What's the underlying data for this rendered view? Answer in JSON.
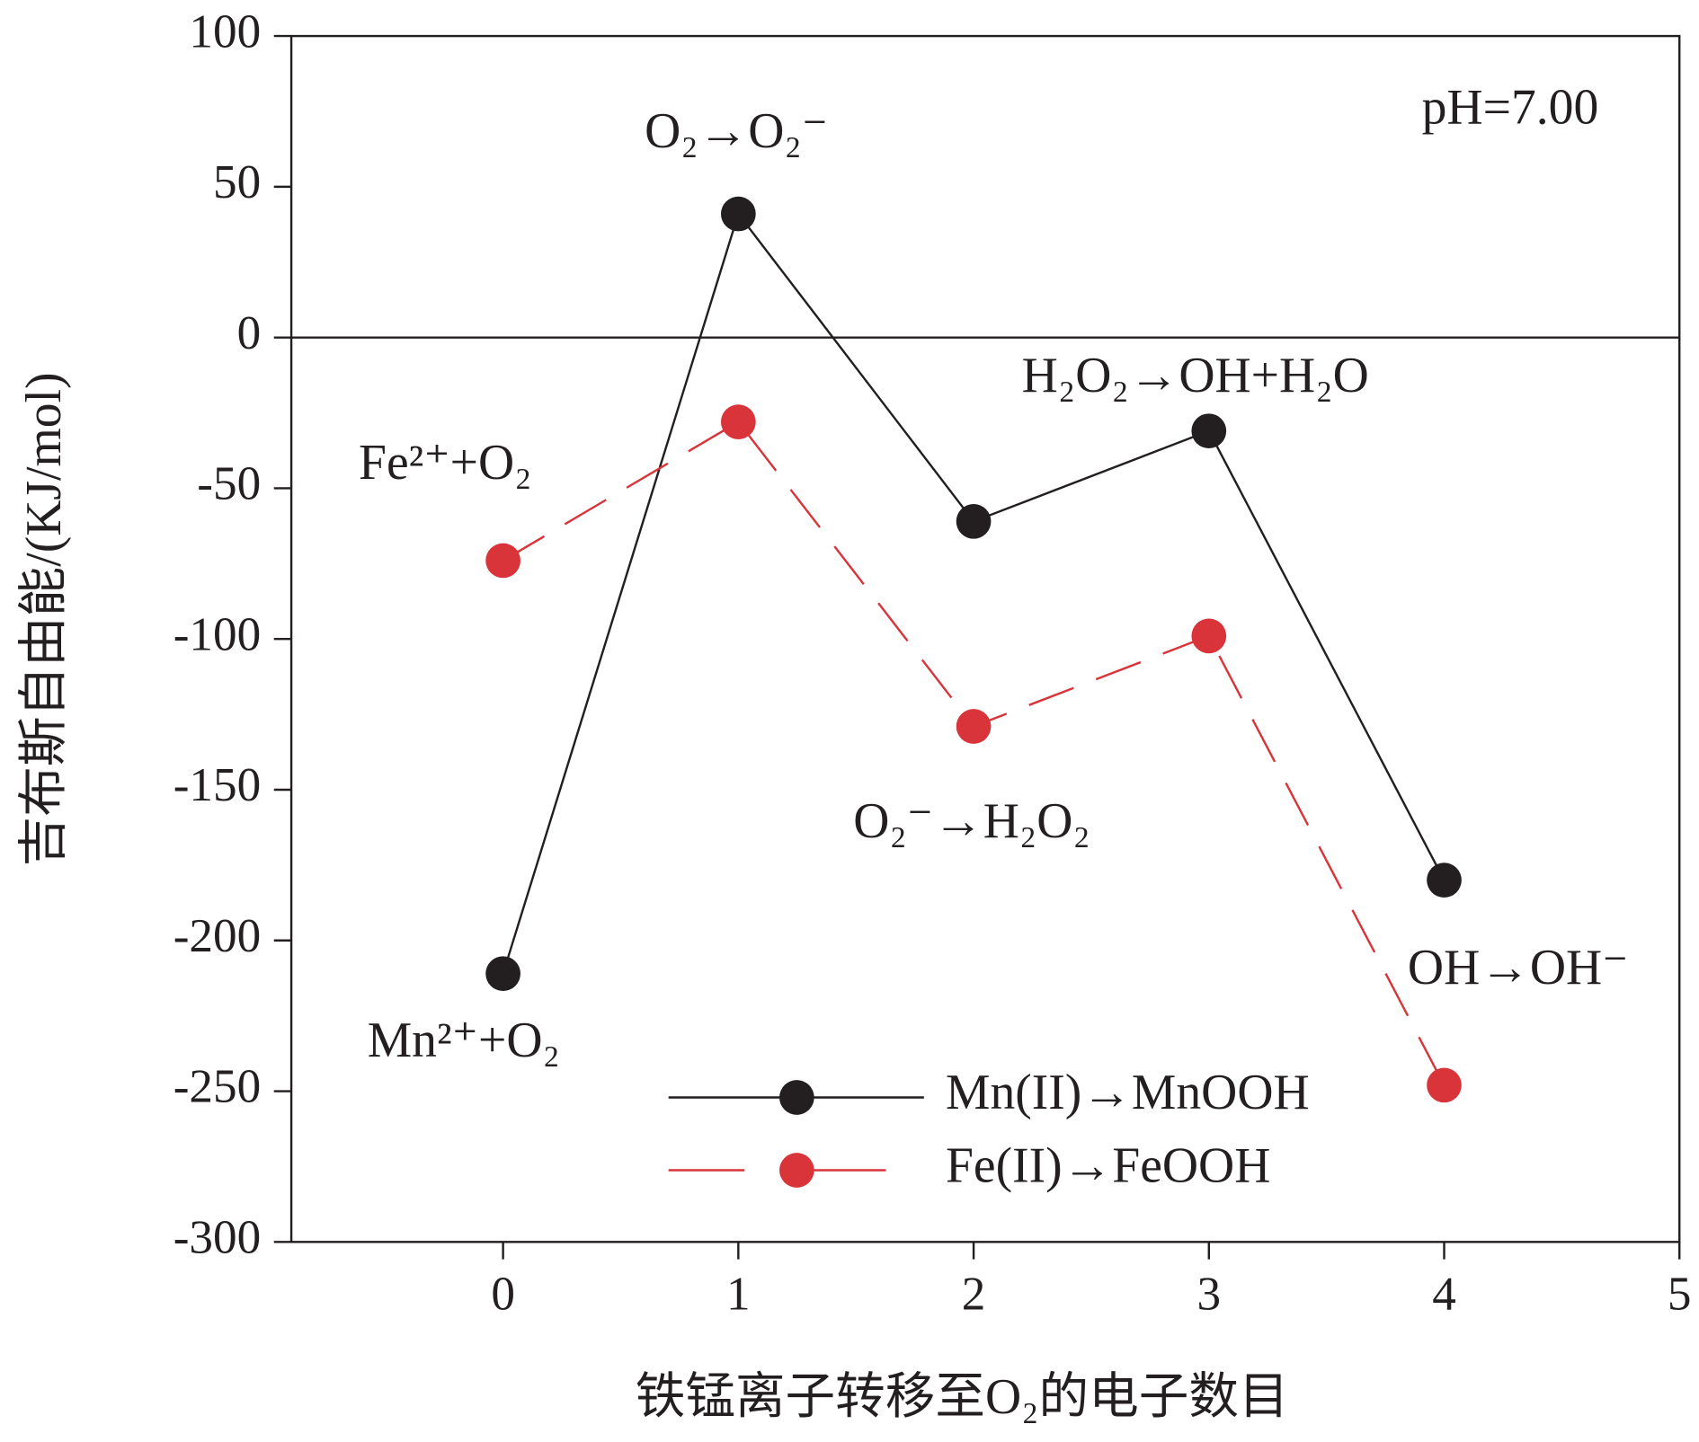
{
  "chart_data": {
    "type": "line",
    "xlabel": "铁锰离子转移至O₂的电子数目",
    "ylabel": "吉布斯自由能/(KJ/mol)",
    "x": [
      0,
      1,
      2,
      3,
      4
    ],
    "series": [
      {
        "name": "Mn(II)→MnOOH",
        "color": "#231f20",
        "dash": false,
        "values": [
          -211,
          41,
          -61,
          -31,
          -180
        ]
      },
      {
        "name": "Fe(II)→FeOOH",
        "color": "#d9343a",
        "dash": true,
        "values": [
          -74,
          -28,
          -129,
          -99,
          -248
        ]
      }
    ],
    "annotations": [
      "pH=7.00",
      "O₂→O₂⁻",
      "H₂O₂→OH+H₂O",
      "Fe²⁺+O₂",
      "O₂⁻→H₂O₂",
      "OH→OH⁻",
      "Mn²⁺+O₂"
    ],
    "xlim": [
      -0.9,
      5
    ],
    "xticks": [
      0,
      1,
      2,
      3,
      4,
      5
    ],
    "ylim": [
      -300,
      100
    ],
    "yticks": [
      -300,
      -250,
      -200,
      -150,
      -100,
      -50,
      0,
      50,
      100
    ],
    "zero_line": true
  }
}
